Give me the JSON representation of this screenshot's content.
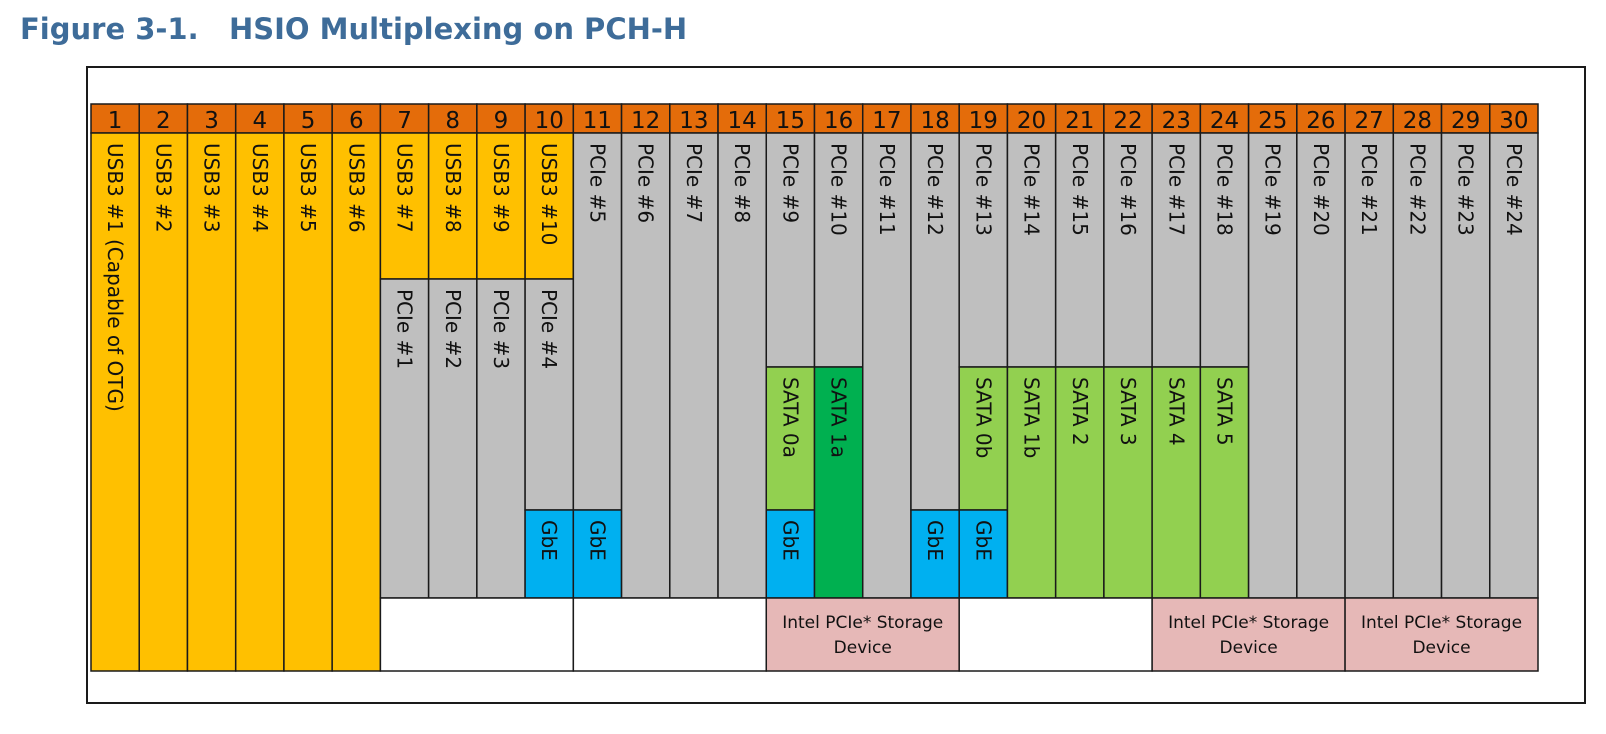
{
  "figure": {
    "label": "Figure 3-1.",
    "title": "HSIO Multiplexing on PCH-H"
  },
  "colors": {
    "header": "#e46c0a",
    "usb3": "#ffc000",
    "pcie": "#bfbfbf",
    "gbe": "#00b0f0",
    "sata_light": "#92d050",
    "sata_dark": "#00b050",
    "storage": "#e6b8b7",
    "empty": "#ffffff",
    "border": "#1a1a1a"
  },
  "lanes": [
    "1",
    "2",
    "3",
    "4",
    "5",
    "6",
    "7",
    "8",
    "9",
    "10",
    "11",
    "12",
    "13",
    "14",
    "15",
    "16",
    "17",
    "18",
    "19",
    "20",
    "21",
    "22",
    "23",
    "24",
    "25",
    "26",
    "27",
    "28",
    "29",
    "30"
  ],
  "blocks": [
    {
      "lane": 1,
      "r0": 0,
      "r1": 5,
      "kind": "usb3",
      "label": "USB3 #1 (Capable of OTG)"
    },
    {
      "lane": 2,
      "r0": 0,
      "r1": 5,
      "kind": "usb3",
      "label": "USB3 #2"
    },
    {
      "lane": 3,
      "r0": 0,
      "r1": 5,
      "kind": "usb3",
      "label": "USB3 #3"
    },
    {
      "lane": 4,
      "r0": 0,
      "r1": 5,
      "kind": "usb3",
      "label": "USB3 #4"
    },
    {
      "lane": 5,
      "r0": 0,
      "r1": 5,
      "kind": "usb3",
      "label": "USB3 #5"
    },
    {
      "lane": 6,
      "r0": 0,
      "r1": 5,
      "kind": "usb3",
      "label": "USB3 #6"
    },
    {
      "lane": 7,
      "r0": 0,
      "r1": 1,
      "kind": "usb3",
      "label": "USB3 #7"
    },
    {
      "lane": 8,
      "r0": 0,
      "r1": 1,
      "kind": "usb3",
      "label": "USB3 #8"
    },
    {
      "lane": 9,
      "r0": 0,
      "r1": 1,
      "kind": "usb3",
      "label": "USB3 #9"
    },
    {
      "lane": 10,
      "r0": 0,
      "r1": 1,
      "kind": "usb3",
      "label": "USB3 #10"
    },
    {
      "lane": 7,
      "r0": 1,
      "r1": 4,
      "kind": "pcie",
      "label": "PCIe #1"
    },
    {
      "lane": 8,
      "r0": 1,
      "r1": 4,
      "kind": "pcie",
      "label": "PCIe #2"
    },
    {
      "lane": 9,
      "r0": 1,
      "r1": 4,
      "kind": "pcie",
      "label": "PCIe #3"
    },
    {
      "lane": 10,
      "r0": 1,
      "r1": 3,
      "kind": "pcie",
      "label": "PCIe #4"
    },
    {
      "lane": 10,
      "r0": 3,
      "r1": 4,
      "kind": "gbe",
      "label": "GbE"
    },
    {
      "lane": 11,
      "r0": 0,
      "r1": 3,
      "kind": "pcie",
      "label": "PCIe #5"
    },
    {
      "lane": 11,
      "r0": 3,
      "r1": 4,
      "kind": "gbe",
      "label": "GbE"
    },
    {
      "lane": 12,
      "r0": 0,
      "r1": 4,
      "kind": "pcie",
      "label": "PCIe #6"
    },
    {
      "lane": 13,
      "r0": 0,
      "r1": 4,
      "kind": "pcie",
      "label": "PCIe #7"
    },
    {
      "lane": 14,
      "r0": 0,
      "r1": 4,
      "kind": "pcie",
      "label": "PCIe #8"
    },
    {
      "lane": 15,
      "r0": 0,
      "r1": 2,
      "kind": "pcie",
      "label": "PCIe #9"
    },
    {
      "lane": 15,
      "r0": 2,
      "r1": 3,
      "kind": "sata_light",
      "label": "SATA 0a"
    },
    {
      "lane": 15,
      "r0": 3,
      "r1": 4,
      "kind": "gbe",
      "label": "GbE"
    },
    {
      "lane": 16,
      "r0": 0,
      "r1": 2,
      "kind": "pcie",
      "label": "PCIe #10"
    },
    {
      "lane": 16,
      "r0": 2,
      "r1": 4,
      "kind": "sata_dark",
      "label": "SATA 1a"
    },
    {
      "lane": 17,
      "r0": 0,
      "r1": 4,
      "kind": "pcie",
      "label": "PCIe #11"
    },
    {
      "lane": 18,
      "r0": 0,
      "r1": 3,
      "kind": "pcie",
      "label": "PCIe #12"
    },
    {
      "lane": 18,
      "r0": 3,
      "r1": 4,
      "kind": "gbe",
      "label": "GbE"
    },
    {
      "lane": 19,
      "r0": 0,
      "r1": 2,
      "kind": "pcie",
      "label": "PCIe #13"
    },
    {
      "lane": 19,
      "r0": 2,
      "r1": 3,
      "kind": "sata_light",
      "label": "SATA 0b"
    },
    {
      "lane": 19,
      "r0": 3,
      "r1": 4,
      "kind": "gbe",
      "label": "GbE"
    },
    {
      "lane": 20,
      "r0": 0,
      "r1": 2,
      "kind": "pcie",
      "label": "PCIe #14"
    },
    {
      "lane": 20,
      "r0": 2,
      "r1": 4,
      "kind": "sata_light",
      "label": "SATA 1b"
    },
    {
      "lane": 21,
      "r0": 0,
      "r1": 2,
      "kind": "pcie",
      "label": "PCIe #15"
    },
    {
      "lane": 21,
      "r0": 2,
      "r1": 4,
      "kind": "sata_light",
      "label": "SATA 2"
    },
    {
      "lane": 22,
      "r0": 0,
      "r1": 2,
      "kind": "pcie",
      "label": "PCIe #16"
    },
    {
      "lane": 22,
      "r0": 2,
      "r1": 4,
      "kind": "sata_light",
      "label": "SATA 3"
    },
    {
      "lane": 23,
      "r0": 0,
      "r1": 2,
      "kind": "pcie",
      "label": "PCIe #17"
    },
    {
      "lane": 23,
      "r0": 2,
      "r1": 4,
      "kind": "sata_light",
      "label": "SATA 4"
    },
    {
      "lane": 24,
      "r0": 0,
      "r1": 2,
      "kind": "pcie",
      "label": "PCIe #18"
    },
    {
      "lane": 24,
      "r0": 2,
      "r1": 4,
      "kind": "sata_light",
      "label": "SATA 5"
    },
    {
      "lane": 25,
      "r0": 0,
      "r1": 4,
      "kind": "pcie",
      "label": "PCIe #19"
    },
    {
      "lane": 26,
      "r0": 0,
      "r1": 4,
      "kind": "pcie",
      "label": "PCIe #20"
    },
    {
      "lane": 27,
      "r0": 0,
      "r1": 4,
      "kind": "pcie",
      "label": "PCIe #21"
    },
    {
      "lane": 28,
      "r0": 0,
      "r1": 4,
      "kind": "pcie",
      "label": "PCIe #22"
    },
    {
      "lane": 29,
      "r0": 0,
      "r1": 4,
      "kind": "pcie",
      "label": "PCIe #23"
    },
    {
      "lane": 30,
      "r0": 0,
      "r1": 4,
      "kind": "pcie",
      "label": "PCIe #24"
    }
  ],
  "storage_row": [
    {
      "lane_start": 7,
      "lane_end": 10,
      "kind": "empty",
      "label": []
    },
    {
      "lane_start": 11,
      "lane_end": 14,
      "kind": "empty",
      "label": []
    },
    {
      "lane_start": 15,
      "lane_end": 18,
      "kind": "storage",
      "label": [
        "Intel PCIe* Storage",
        "Device"
      ]
    },
    {
      "lane_start": 19,
      "lane_end": 22,
      "kind": "empty",
      "label": []
    },
    {
      "lane_start": 23,
      "lane_end": 26,
      "kind": "storage",
      "label": [
        "Intel PCIe* Storage",
        "Device"
      ]
    },
    {
      "lane_start": 27,
      "lane_end": 30,
      "kind": "storage",
      "label": [
        "Intel PCIe* Storage",
        "Device"
      ]
    }
  ]
}
